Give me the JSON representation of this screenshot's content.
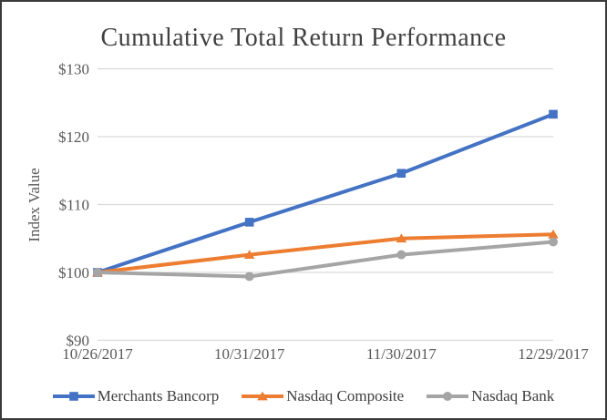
{
  "chart_data": {
    "type": "line",
    "title": "Cumulative Total Return Performance",
    "ylabel": "Index Value",
    "x": [
      "10/26/2017",
      "10/31/2017",
      "11/30/2017",
      "12/29/2017"
    ],
    "ylim": [
      90,
      130
    ],
    "ytick_step": 10,
    "yticklabels": [
      "$90",
      "$100",
      "$110",
      "$120",
      "$130"
    ],
    "grid": "horizontal-only",
    "legend_position": "bottom",
    "series": [
      {
        "name": "Merchants Bancorp",
        "marker": "square",
        "color": "#4472C4",
        "values": [
          100,
          107.4,
          114.6,
          123.3
        ]
      },
      {
        "name": "Nasdaq Composite",
        "marker": "triangle",
        "color": "#ED7D31",
        "values": [
          100,
          102.6,
          105.0,
          105.6
        ]
      },
      {
        "name": "Nasdaq Bank",
        "marker": "circle",
        "color": "#A5A5A5",
        "values": [
          100,
          99.4,
          102.6,
          104.5
        ]
      }
    ],
    "colors": {
      "grid": "#D9D9D9",
      "tick_text": "#595959",
      "text": "#404040",
      "border": "#3a3a3a"
    }
  }
}
